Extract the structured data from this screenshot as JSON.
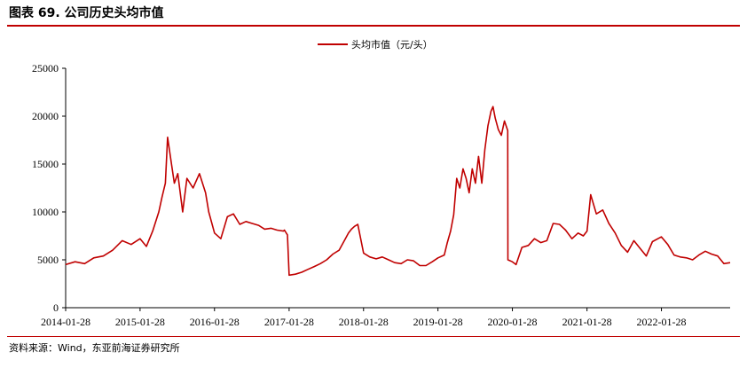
{
  "figure": {
    "title": "图表 69. 公司历史头均市值",
    "source": "资料来源：Wind，东亚前海证券研究所"
  },
  "chart_data": {
    "type": "line",
    "title": "",
    "xlabel": "",
    "ylabel": "",
    "ylim": [
      0,
      25000
    ],
    "y_ticks": [
      "0",
      "5000",
      "10000",
      "15000",
      "20000",
      "25000"
    ],
    "x_ticks": [
      "2014-01-28",
      "2015-01-28",
      "2016-01-28",
      "2017-01-28",
      "2018-01-28",
      "2019-01-28",
      "2020-01-28",
      "2021-01-28",
      "2022-01-28"
    ],
    "xlim": [
      "2014-01-28",
      "2022-12-31"
    ],
    "legend_position": "top-center",
    "grid": false,
    "series_color": "#c00000",
    "series": [
      {
        "name": "头均市值（元/头）",
        "x": [
          "2014-01-28",
          "2014-03-15",
          "2014-05-01",
          "2014-06-15",
          "2014-08-01",
          "2014-09-15",
          "2014-11-01",
          "2014-12-15",
          "2015-01-28",
          "2015-02-28",
          "2015-03-31",
          "2015-04-30",
          "2015-05-15",
          "2015-06-01",
          "2015-06-12",
          "2015-07-01",
          "2015-07-15",
          "2015-08-01",
          "2015-08-25",
          "2015-09-15",
          "2015-10-15",
          "2015-11-15",
          "2015-12-15",
          "2015-12-31",
          "2016-01-28",
          "2016-02-28",
          "2016-03-31",
          "2016-04-30",
          "2016-05-31",
          "2016-06-30",
          "2016-07-31",
          "2016-08-31",
          "2016-09-30",
          "2016-10-31",
          "2016-11-30",
          "2016-12-31",
          "2017-01-05",
          "2017-01-20",
          "2017-01-28",
          "2017-02-28",
          "2017-03-31",
          "2017-04-30",
          "2017-05-31",
          "2017-06-30",
          "2017-07-31",
          "2017-08-31",
          "2017-09-30",
          "2017-10-31",
          "2017-11-15",
          "2017-11-30",
          "2017-12-15",
          "2017-12-31",
          "2018-01-28",
          "2018-02-28",
          "2018-03-31",
          "2018-04-30",
          "2018-05-31",
          "2018-06-30",
          "2018-07-31",
          "2018-08-31",
          "2018-09-30",
          "2018-10-31",
          "2018-11-30",
          "2018-12-31",
          "2019-01-28",
          "2019-02-28",
          "2019-03-15",
          "2019-03-31",
          "2019-04-15",
          "2019-04-30",
          "2019-05-15",
          "2019-05-31",
          "2019-06-15",
          "2019-06-30",
          "2019-07-15",
          "2019-07-31",
          "2019-08-15",
          "2019-08-31",
          "2019-09-15",
          "2019-09-30",
          "2019-10-15",
          "2019-10-25",
          "2019-11-05",
          "2019-11-20",
          "2019-12-05",
          "2019-12-20",
          "2020-01-05",
          "2020-01-06",
          "2020-01-28",
          "2020-02-15",
          "2020-03-15",
          "2020-04-15",
          "2020-05-15",
          "2020-06-15",
          "2020-07-15",
          "2020-08-15",
          "2020-09-15",
          "2020-10-15",
          "2020-11-15",
          "2020-12-15",
          "2021-01-10",
          "2021-01-28",
          "2021-02-15",
          "2021-03-15",
          "2021-04-15",
          "2021-05-15",
          "2021-06-15",
          "2021-07-15",
          "2021-08-15",
          "2021-09-15",
          "2021-10-15",
          "2021-11-15",
          "2021-12-15",
          "2022-01-28",
          "2022-02-28",
          "2022-03-31",
          "2022-04-30",
          "2022-05-31",
          "2022-06-30",
          "2022-07-31",
          "2022-08-31",
          "2022-09-30",
          "2022-10-31",
          "2022-11-30",
          "2022-12-31"
        ],
        "values": [
          4500,
          4800,
          4600,
          5200,
          5400,
          6000,
          7000,
          6600,
          7200,
          6400,
          8000,
          10000,
          11500,
          13000,
          17800,
          15000,
          13000,
          14000,
          10000,
          13500,
          12500,
          14000,
          12000,
          10000,
          7800,
          7200,
          9500,
          9800,
          8700,
          9000,
          8800,
          8600,
          8200,
          8300,
          8100,
          8000,
          8100,
          7600,
          3400,
          3500,
          3700,
          4000,
          4300,
          4600,
          5000,
          5600,
          6000,
          7200,
          7800,
          8200,
          8500,
          8700,
          5700,
          5300,
          5100,
          5300,
          5000,
          4700,
          4600,
          5000,
          4900,
          4400,
          4400,
          4800,
          5200,
          5500,
          6800,
          8000,
          9700,
          13500,
          12500,
          14500,
          13500,
          12000,
          14500,
          13000,
          15800,
          13000,
          16500,
          19000,
          20500,
          21000,
          19800,
          18600,
          18000,
          19500,
          18500,
          5000,
          4800,
          4500,
          6300,
          6500,
          7200,
          6800,
          7000,
          8800,
          8700,
          8100,
          7200,
          7800,
          7500,
          8000,
          11800,
          9800,
          10200,
          8800,
          7800,
          6500,
          5800,
          7000,
          6200,
          5400,
          6900,
          7400,
          6600,
          5500,
          5300,
          5200,
          5000,
          5500,
          5900,
          5600,
          5400,
          4600,
          4700
        ]
      }
    ]
  }
}
